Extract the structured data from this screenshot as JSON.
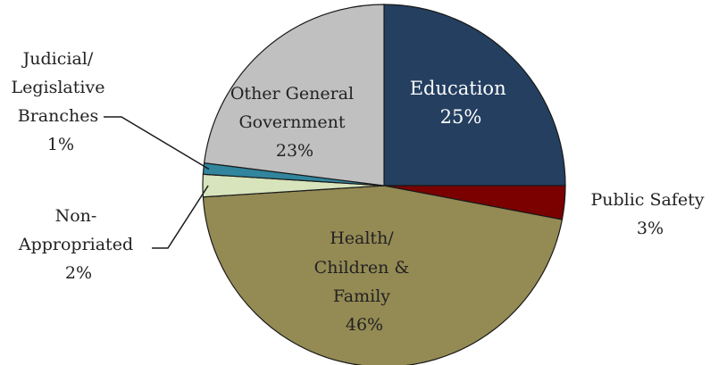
{
  "chart_data": {
    "type": "pie",
    "title": "",
    "start_angle_deg": 0,
    "direction": "clockwise",
    "slices": [
      {
        "label_lines": [
          "Education",
          "25%"
        ],
        "value": 25,
        "color": "#243f60",
        "label_color": "#ffffff"
      },
      {
        "label_lines": [
          "Public Safety",
          "3%"
        ],
        "value": 3,
        "color": "#7b0000",
        "label_color": "#222222"
      },
      {
        "label_lines": [
          "Health/",
          "Children &",
          "Family",
          "46%"
        ],
        "value": 46,
        "color": "#948a54",
        "label_color": "#222222"
      },
      {
        "label_lines": [
          "Non-",
          "Appropriated",
          "2%"
        ],
        "value": 2,
        "color": "#d7e4bc",
        "label_color": "#222222"
      },
      {
        "label_lines": [
          "Judicial/",
          "Legislative",
          "Branches",
          "1%"
        ],
        "value": 1,
        "color": "#31859c",
        "label_color": "#222222"
      },
      {
        "label_lines": [
          "Other General",
          "Government",
          "23%"
        ],
        "value": 23,
        "color": "#c0c0c0",
        "label_color": "#222222"
      }
    ]
  }
}
